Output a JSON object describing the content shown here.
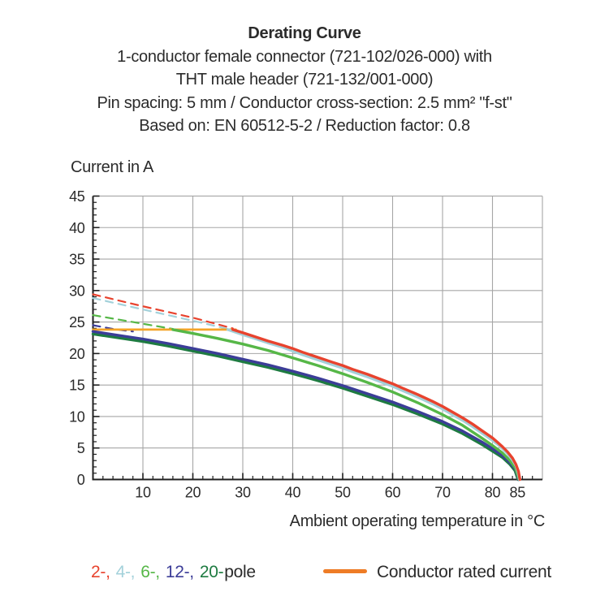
{
  "title_block": {
    "title": "Derating Curve",
    "line2": "1-conductor female connector (721-102/026-000) with",
    "line3": "THT male header (721-132/001-000)",
    "line4": "Pin spacing: 5 mm / Conductor cross-section: 2.5 mm² \"f-st\"",
    "line5": "Based on: EN 60512-5-2 / Reduction factor: 0.8"
  },
  "chart_data": {
    "type": "line",
    "title": "Derating Curve",
    "ylabel": "Current in A",
    "xlabel": "Ambient operating temperature in °C",
    "xlim": [
      0,
      90
    ],
    "ylim": [
      0,
      45
    ],
    "x_major_ticks": [
      10,
      20,
      30,
      40,
      50,
      60,
      70,
      80,
      85
    ],
    "x_minor_step": 2,
    "y_major_ticks": [
      0,
      5,
      10,
      15,
      20,
      25,
      30,
      35,
      40,
      45
    ],
    "y_minor_step": 1,
    "grid": true,
    "grid_color": "#a6a6a6",
    "axis_color": "#1f1f1f",
    "tick_label_color": "#2b2b2b",
    "legend_position": "bottom",
    "series": [
      {
        "name": "2-pole-uncapped",
        "color": "#e8432e",
        "style": "dashed",
        "width": 2.2,
        "points": [
          [
            0,
            29.4
          ],
          [
            10,
            27.5
          ],
          [
            20,
            25.7
          ],
          [
            28,
            24.0
          ]
        ]
      },
      {
        "name": "4-pole-uncapped",
        "color": "#a3d1da",
        "style": "dashed",
        "width": 2.2,
        "points": [
          [
            0,
            28.8
          ],
          [
            10,
            27.0
          ],
          [
            20,
            25.2
          ],
          [
            27,
            23.9
          ]
        ]
      },
      {
        "name": "6-pole-uncapped",
        "color": "#56b747",
        "style": "dashed",
        "width": 2.2,
        "points": [
          [
            0,
            26.1
          ],
          [
            8,
            25.0
          ],
          [
            16,
            23.9
          ]
        ]
      },
      {
        "name": "12-pole-uncapped",
        "color": "#3c3d98",
        "style": "dashed",
        "width": 2.2,
        "points": [
          [
            0,
            24.5
          ],
          [
            4,
            23.9
          ],
          [
            8,
            23.5
          ]
        ]
      },
      {
        "name": "conductor-rated-current",
        "color": "#f4a428",
        "style": "solid",
        "width": 2.8,
        "points": [
          [
            0,
            23.8
          ],
          [
            28.6,
            23.8
          ]
        ]
      },
      {
        "name": "20-pole",
        "color": "#1e7b41",
        "style": "solid",
        "width": 3.4,
        "points": [
          [
            0,
            23.1
          ],
          [
            5,
            22.5
          ],
          [
            10,
            21.9
          ],
          [
            15,
            21.2
          ],
          [
            20,
            20.4
          ],
          [
            25,
            19.6
          ],
          [
            30,
            18.7
          ],
          [
            35,
            17.8
          ],
          [
            40,
            16.8
          ],
          [
            45,
            15.7
          ],
          [
            50,
            14.5
          ],
          [
            55,
            13.2
          ],
          [
            60,
            11.9
          ],
          [
            65,
            10.4
          ],
          [
            70,
            8.8
          ],
          [
            74,
            7.3
          ],
          [
            78,
            5.5
          ],
          [
            80,
            4.5
          ],
          [
            82,
            3.5
          ],
          [
            83.5,
            2.4
          ],
          [
            84.5,
            1.4
          ],
          [
            85.1,
            0
          ]
        ]
      },
      {
        "name": "12-pole",
        "color": "#3c3d98",
        "style": "solid",
        "width": 3.4,
        "points": [
          [
            0,
            23.5
          ],
          [
            5,
            22.9
          ],
          [
            10,
            22.3
          ],
          [
            15,
            21.6
          ],
          [
            20,
            20.8
          ],
          [
            25,
            20.0
          ],
          [
            30,
            19.1
          ],
          [
            35,
            18.2
          ],
          [
            40,
            17.2
          ],
          [
            45,
            16.1
          ],
          [
            50,
            14.9
          ],
          [
            55,
            13.6
          ],
          [
            60,
            12.3
          ],
          [
            65,
            10.8
          ],
          [
            70,
            9.2
          ],
          [
            74,
            7.7
          ],
          [
            78,
            5.9
          ],
          [
            80,
            4.9
          ],
          [
            82,
            3.8
          ],
          [
            83.5,
            2.7
          ],
          [
            84.6,
            1.6
          ],
          [
            85.2,
            0
          ]
        ]
      },
      {
        "name": "6-pole",
        "color": "#56b747",
        "style": "solid",
        "width": 3.4,
        "points": [
          [
            16,
            23.8
          ],
          [
            20,
            23.2
          ],
          [
            25,
            22.4
          ],
          [
            30,
            21.5
          ],
          [
            35,
            20.5
          ],
          [
            40,
            19.3
          ],
          [
            45,
            18.1
          ],
          [
            50,
            16.8
          ],
          [
            55,
            15.4
          ],
          [
            60,
            13.9
          ],
          [
            65,
            12.2
          ],
          [
            70,
            10.3
          ],
          [
            74,
            8.6
          ],
          [
            78,
            6.5
          ],
          [
            80,
            5.4
          ],
          [
            82,
            4.2
          ],
          [
            83.5,
            3.0
          ],
          [
            84.6,
            1.8
          ],
          [
            85.3,
            0
          ]
        ]
      },
      {
        "name": "4-pole",
        "color": "#a3d1da",
        "style": "solid",
        "width": 3.4,
        "points": [
          [
            27,
            23.8
          ],
          [
            30,
            23.0
          ],
          [
            32,
            22.5
          ],
          [
            35,
            21.7
          ],
          [
            38,
            21.0
          ],
          [
            40,
            20.4
          ],
          [
            42,
            19.8
          ],
          [
            45,
            19.0
          ],
          [
            48,
            18.2
          ],
          [
            50,
            17.7
          ],
          [
            52,
            17.1
          ],
          [
            55,
            16.3
          ],
          [
            58,
            15.4
          ],
          [
            60,
            14.8
          ],
          [
            62,
            14.1
          ],
          [
            65,
            13.1
          ],
          [
            68,
            12.0
          ],
          [
            70,
            11.2
          ],
          [
            72,
            10.3
          ],
          [
            74,
            9.4
          ],
          [
            76,
            8.4
          ],
          [
            78,
            7.3
          ],
          [
            80,
            6.2
          ],
          [
            81,
            5.6
          ],
          [
            82,
            4.9
          ],
          [
            83,
            4.1
          ],
          [
            84,
            3.1
          ],
          [
            84.7,
            2.2
          ],
          [
            85.1,
            1.2
          ],
          [
            85.4,
            0
          ]
        ]
      },
      {
        "name": "2-pole",
        "color": "#e8432e",
        "style": "solid",
        "width": 3.4,
        "points": [
          [
            28,
            23.8
          ],
          [
            30,
            23.3
          ],
          [
            32,
            22.8
          ],
          [
            35,
            22.0
          ],
          [
            38,
            21.3
          ],
          [
            40,
            20.8
          ],
          [
            42,
            20.2
          ],
          [
            45,
            19.4
          ],
          [
            48,
            18.6
          ],
          [
            50,
            18.1
          ],
          [
            52,
            17.5
          ],
          [
            55,
            16.7
          ],
          [
            58,
            15.8
          ],
          [
            60,
            15.2
          ],
          [
            62,
            14.5
          ],
          [
            65,
            13.5
          ],
          [
            68,
            12.4
          ],
          [
            70,
            11.6
          ],
          [
            72,
            10.7
          ],
          [
            74,
            9.8
          ],
          [
            76,
            8.8
          ],
          [
            78,
            7.7
          ],
          [
            80,
            6.6
          ],
          [
            81,
            5.9
          ],
          [
            82,
            5.2
          ],
          [
            83,
            4.4
          ],
          [
            84,
            3.4
          ],
          [
            84.7,
            2.4
          ],
          [
            85.2,
            1.3
          ],
          [
            85.5,
            0
          ]
        ]
      }
    ]
  },
  "legend": {
    "pole_items": [
      {
        "label": "2-,",
        "color": "#e8432e"
      },
      {
        "label": "4-,",
        "color": "#a3d1da"
      },
      {
        "label": "6-,",
        "color": "#56b747"
      },
      {
        "label": "12-,",
        "color": "#3c3d98"
      },
      {
        "label": "20-",
        "color": "#1e7b41"
      }
    ],
    "suffix": "pole",
    "rated": {
      "label": "Conductor rated current",
      "swatch_color": "#ee7c26"
    }
  }
}
